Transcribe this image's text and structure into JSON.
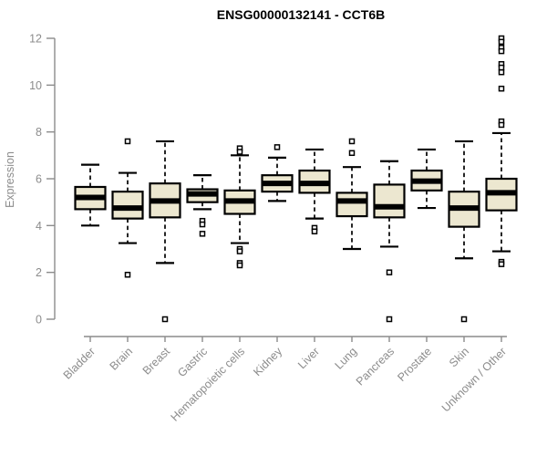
{
  "page": {
    "background": "#ffffff"
  },
  "chart_data": {
    "type": "boxplot",
    "title": "ENSG00000132141 - CCT6B",
    "ylabel": "Expression",
    "xlabel": "",
    "ylim": [
      0,
      12
    ],
    "yticks": [
      0,
      2,
      4,
      6,
      8,
      10,
      12
    ],
    "grid": false,
    "legend": "none",
    "categories": [
      "Bladder",
      "Brain",
      "Breast",
      "Gastric",
      "Hematopoietic cells",
      "Kidney",
      "Liver",
      "Lung",
      "Pancreas",
      "Prostate",
      "Skin",
      "Unknown / Other"
    ],
    "boxes": [
      {
        "category": "Bladder",
        "low": 4.0,
        "q1": 4.7,
        "median": 5.2,
        "q3": 5.65,
        "high": 6.6,
        "outliers": []
      },
      {
        "category": "Brain",
        "low": 3.25,
        "q1": 4.3,
        "median": 4.75,
        "q3": 5.45,
        "high": 6.25,
        "outliers": [
          7.6,
          1.9
        ]
      },
      {
        "category": "Breast",
        "low": 2.4,
        "q1": 4.35,
        "median": 5.05,
        "q3": 5.8,
        "high": 7.6,
        "outliers": [
          0
        ]
      },
      {
        "category": "Gastric",
        "low": 4.7,
        "q1": 5.0,
        "median": 5.35,
        "q3": 5.55,
        "high": 6.15,
        "outliers": [
          4.2,
          4.05,
          3.65
        ]
      },
      {
        "category": "Hematopoietic cells",
        "low": 3.25,
        "q1": 4.5,
        "median": 5.05,
        "q3": 5.5,
        "high": 7.0,
        "outliers": [
          7.3,
          7.15,
          3.0,
          2.9,
          2.4,
          2.3
        ]
      },
      {
        "category": "Kidney",
        "low": 5.05,
        "q1": 5.45,
        "median": 5.8,
        "q3": 6.15,
        "high": 6.9,
        "outliers": [
          7.35
        ]
      },
      {
        "category": "Liver",
        "low": 4.3,
        "q1": 5.4,
        "median": 5.8,
        "q3": 6.35,
        "high": 7.25,
        "outliers": [
          3.9,
          3.75
        ]
      },
      {
        "category": "Lung",
        "low": 3.0,
        "q1": 4.4,
        "median": 5.05,
        "q3": 5.4,
        "high": 6.5,
        "outliers": [
          7.6,
          7.1
        ]
      },
      {
        "category": "Pancreas",
        "low": 3.1,
        "q1": 4.35,
        "median": 4.8,
        "q3": 5.75,
        "high": 6.75,
        "outliers": [
          2.0,
          0
        ]
      },
      {
        "category": "Prostate",
        "low": 4.75,
        "q1": 5.5,
        "median": 5.9,
        "q3": 6.35,
        "high": 7.25,
        "outliers": []
      },
      {
        "category": "Skin",
        "low": 2.6,
        "q1": 3.95,
        "median": 4.75,
        "q3": 5.45,
        "high": 7.6,
        "outliers": [
          0
        ]
      },
      {
        "category": "Unknown / Other",
        "low": 2.9,
        "q1": 4.65,
        "median": 5.4,
        "q3": 6.0,
        "high": 7.95,
        "outliers": [
          12.0,
          11.85,
          11.6,
          11.45,
          10.9,
          10.75,
          10.55,
          9.85,
          8.45,
          8.3,
          2.45,
          2.35
        ]
      }
    ],
    "colors": {
      "box_fill": "#ece7d0",
      "box_border": "#000000",
      "median": "#000000",
      "whisker": "#000000",
      "axis": "#8c8c8c",
      "tick_label": "#8c8c8c",
      "title": "#000000",
      "outlier_fill": "#ffffff"
    }
  }
}
